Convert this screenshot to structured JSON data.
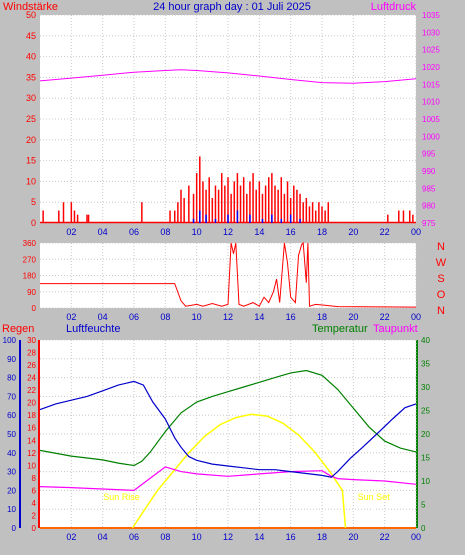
{
  "header": {
    "left_label": "Windstärke",
    "title": "24 hour graph day : 01 Juli 2025",
    "right_label": "Luftdruck"
  },
  "colors": {
    "background": "#c0c0c0",
    "plot_background": "#ffffff",
    "wind": "#ff0000",
    "gust": "#0000ff",
    "pressure": "#ff00ff",
    "direction": "#ff0000",
    "humidity": "#0000cc",
    "temperature": "#008000",
    "dewpoint": "#ff00ff",
    "solar": "#ffff00",
    "sunlabel": "#ffff00",
    "grid": "#c8c8c8"
  },
  "x_ticks": [
    "02",
    "04",
    "06",
    "08",
    "10",
    "12",
    "14",
    "16",
    "18",
    "20",
    "22",
    "00"
  ],
  "chart_data": [
    {
      "type": "bar",
      "title": "24 hour graph day : 01 Juli 2025",
      "left_axis": {
        "label": "Windstärke",
        "ticks": [
          0,
          5,
          10,
          15,
          20,
          25,
          30,
          35,
          40,
          45,
          50
        ],
        "range": [
          0,
          50
        ]
      },
      "right_axis": {
        "label": "Luftdruck",
        "ticks": [
          975,
          980,
          985,
          990,
          995,
          1000,
          1005,
          1010,
          1015,
          1020,
          1025,
          1030,
          1035
        ],
        "range": [
          975,
          1035
        ]
      },
      "x": {
        "ticks": [
          "02",
          "04",
          "06",
          "08",
          "10",
          "12",
          "14",
          "16",
          "18",
          "20",
          "22",
          "00"
        ],
        "range_hours": [
          0,
          24
        ]
      },
      "series": [
        {
          "kind": "line",
          "points": [
            [
              0,
              1016.0
            ],
            [
              2,
              1016.8
            ],
            [
              4,
              1017.6
            ],
            [
              6,
              1018.5
            ],
            [
              8,
              1019.0
            ],
            [
              9,
              1019.2
            ],
            [
              10,
              1019.0
            ],
            [
              12,
              1018.3
            ],
            [
              14,
              1017.4
            ],
            [
              16,
              1016.4
            ],
            [
              18,
              1015.5
            ],
            [
              20,
              1015.3
            ],
            [
              22,
              1015.8
            ],
            [
              24,
              1016.6
            ]
          ]
        },
        {
          "kind": "bars",
          "points": [
            [
              0.2,
              3
            ],
            [
              1.2,
              3
            ],
            [
              1.5,
              5
            ],
            [
              2.0,
              5
            ],
            [
              2.2,
              3
            ],
            [
              2.4,
              2
            ],
            [
              3.0,
              2
            ],
            [
              3.1,
              2
            ],
            [
              6.5,
              5
            ],
            [
              8.3,
              3
            ],
            [
              8.6,
              3
            ],
            [
              8.8,
              5
            ],
            [
              9.0,
              8
            ],
            [
              9.2,
              6
            ],
            [
              9.5,
              9
            ],
            [
              9.8,
              7
            ],
            [
              10.0,
              12
            ],
            [
              10.2,
              16
            ],
            [
              10.4,
              10
            ],
            [
              10.6,
              8
            ],
            [
              10.8,
              11
            ],
            [
              11.0,
              6
            ],
            [
              11.2,
              9
            ],
            [
              11.4,
              8
            ],
            [
              11.6,
              12
            ],
            [
              11.8,
              9
            ],
            [
              12.0,
              11
            ],
            [
              12.2,
              7
            ],
            [
              12.4,
              10
            ],
            [
              12.6,
              12
            ],
            [
              12.8,
              9
            ],
            [
              13.0,
              11
            ],
            [
              13.2,
              7
            ],
            [
              13.4,
              10
            ],
            [
              13.6,
              12
            ],
            [
              13.8,
              8
            ],
            [
              14.0,
              10
            ],
            [
              14.2,
              7
            ],
            [
              14.4,
              9
            ],
            [
              14.6,
              11
            ],
            [
              14.8,
              12
            ],
            [
              15.0,
              9
            ],
            [
              15.2,
              8
            ],
            [
              15.4,
              11
            ],
            [
              15.6,
              7
            ],
            [
              15.8,
              10
            ],
            [
              16.0,
              6
            ],
            [
              16.2,
              9
            ],
            [
              16.4,
              8
            ],
            [
              16.6,
              7
            ],
            [
              16.8,
              5
            ],
            [
              17.0,
              6
            ],
            [
              17.2,
              4
            ],
            [
              17.4,
              5
            ],
            [
              17.6,
              3
            ],
            [
              17.8,
              5
            ],
            [
              18.0,
              4
            ],
            [
              18.2,
              3
            ],
            [
              18.4,
              5
            ],
            [
              22.2,
              2
            ],
            [
              22.9,
              3
            ],
            [
              23.2,
              3
            ],
            [
              23.6,
              3
            ],
            [
              23.8,
              2
            ]
          ]
        },
        {
          "kind": "bars",
          "points": [
            [
              9.8,
              1
            ],
            [
              10.2,
              3
            ],
            [
              10.6,
              2
            ],
            [
              11.2,
              1
            ],
            [
              12.0,
              2
            ],
            [
              12.6,
              3
            ],
            [
              13.4,
              2
            ],
            [
              14.2,
              1
            ],
            [
              14.8,
              2
            ],
            [
              15.4,
              1
            ],
            [
              16.0,
              2
            ],
            [
              16.6,
              1
            ]
          ]
        }
      ]
    },
    {
      "type": "line",
      "title": "",
      "left_axis": {
        "ticks": [
          0,
          90,
          180,
          270,
          360
        ],
        "range": [
          0,
          360
        ]
      },
      "right_axis": {
        "labels": [
          "N",
          "W",
          "S",
          "O",
          "N"
        ]
      },
      "x": {
        "ticks": [
          "02",
          "04",
          "06",
          "08",
          "10",
          "12",
          "14",
          "16",
          "18",
          "20",
          "22",
          "00"
        ],
        "range_hours": [
          0,
          24
        ]
      },
      "series": [
        {
          "points": [
            [
              0,
              135
            ],
            [
              8.6,
              135
            ],
            [
              9.0,
              40
            ],
            [
              9.3,
              10
            ],
            [
              10.0,
              20
            ],
            [
              10.4,
              10
            ],
            [
              11.0,
              25
            ],
            [
              11.6,
              10
            ],
            [
              12.0,
              20
            ],
            [
              12.2,
              360
            ],
            [
              12.35,
              300
            ],
            [
              12.5,
              360
            ],
            [
              12.7,
              20
            ],
            [
              13.0,
              10
            ],
            [
              13.6,
              30
            ],
            [
              14.0,
              10
            ],
            [
              14.3,
              60
            ],
            [
              14.6,
              30
            ],
            [
              14.9,
              90
            ],
            [
              15.1,
              160
            ],
            [
              15.3,
              30
            ],
            [
              15.6,
              360
            ],
            [
              15.8,
              250
            ],
            [
              16.0,
              60
            ],
            [
              16.3,
              30
            ],
            [
              16.5,
              290
            ],
            [
              16.7,
              350
            ],
            [
              16.8,
              360
            ],
            [
              17.0,
              140
            ],
            [
              17.1,
              360
            ],
            [
              17.2,
              10
            ],
            [
              17.6,
              20
            ],
            [
              18.2,
              15
            ],
            [
              19.0,
              8
            ],
            [
              24,
              5
            ]
          ]
        }
      ]
    },
    {
      "type": "line",
      "title": "",
      "axes": {
        "regen": {
          "label": "Regen",
          "ticks": [
            0,
            2,
            4,
            6,
            8,
            10,
            12,
            14,
            16,
            18,
            20,
            22,
            24,
            26,
            28,
            30
          ]
        },
        "luftfeuchte": {
          "label": "Luftfeuchte",
          "ticks": [
            0,
            10,
            20,
            30,
            40,
            50,
            60,
            70,
            80,
            90,
            100
          ]
        },
        "temperatur": {
          "label": "Temperatur",
          "ticks": [
            0,
            5,
            10,
            15,
            20,
            25,
            30,
            35,
            40
          ]
        },
        "taupunkt": {
          "label": "Taupunkt"
        }
      },
      "x": {
        "ticks": [
          "02",
          "04",
          "06",
          "08",
          "10",
          "12",
          "14",
          "16",
          "18",
          "20",
          "22",
          "00"
        ],
        "range_hours": [
          0,
          24
        ]
      },
      "annotations": [
        {
          "text": "Sun Rise",
          "x_hours": 5.2
        },
        {
          "text": "Sun Set",
          "x_hours": 21.3
        }
      ],
      "series": [
        {
          "axis": "luftfeuchte",
          "points": [
            [
              0,
              63
            ],
            [
              1,
              66
            ],
            [
              2,
              68
            ],
            [
              3,
              70
            ],
            [
              4,
              73
            ],
            [
              5,
              76
            ],
            [
              6,
              78
            ],
            [
              6.6,
              76
            ],
            [
              7.2,
              67
            ],
            [
              8.0,
              58
            ],
            [
              8.6,
              48
            ],
            [
              9.0,
              43
            ],
            [
              9.5,
              38
            ],
            [
              10.0,
              36
            ],
            [
              11.0,
              34
            ],
            [
              12.0,
              33
            ],
            [
              13.0,
              32
            ],
            [
              14.0,
              31
            ],
            [
              15.0,
              31
            ],
            [
              16.0,
              30
            ],
            [
              17.0,
              29
            ],
            [
              18.0,
              28
            ],
            [
              18.6,
              27
            ],
            [
              19.0,
              30
            ],
            [
              19.8,
              37
            ],
            [
              20.6,
              43
            ],
            [
              21.5,
              50
            ],
            [
              22.5,
              58
            ],
            [
              23.3,
              64
            ],
            [
              24,
              66
            ]
          ]
        },
        {
          "axis": "temperatur",
          "points": [
            [
              0,
              16.5
            ],
            [
              2,
              15.3
            ],
            [
              4,
              14.5
            ],
            [
              5,
              13.8
            ],
            [
              6,
              13.3
            ],
            [
              6.5,
              14.2
            ],
            [
              7.0,
              16.0
            ],
            [
              8.0,
              20.5
            ],
            [
              9.0,
              24.5
            ],
            [
              10.0,
              26.8
            ],
            [
              11.0,
              28.0
            ],
            [
              12.0,
              29.0
            ],
            [
              13.0,
              30.0
            ],
            [
              14.0,
              31.0
            ],
            [
              15.0,
              32.0
            ],
            [
              16.0,
              33.0
            ],
            [
              17.0,
              33.5
            ],
            [
              18.0,
              32.5
            ],
            [
              19.0,
              29.5
            ],
            [
              20.0,
              25.5
            ],
            [
              21.0,
              21.5
            ],
            [
              22.0,
              18.5
            ],
            [
              23.0,
              17.0
            ],
            [
              24,
              16.2
            ]
          ]
        },
        {
          "axis": "temperatur",
          "points": [
            [
              0,
              8.8
            ],
            [
              2,
              8.6
            ],
            [
              4,
              8.3
            ],
            [
              6,
              8.0
            ],
            [
              7.0,
              10.5
            ],
            [
              8.0,
              13.0
            ],
            [
              9.0,
              12.0
            ],
            [
              10.0,
              11.5
            ],
            [
              12.0,
              11.0
            ],
            [
              14.0,
              11.5
            ],
            [
              16.0,
              12.0
            ],
            [
              18.0,
              12.2
            ],
            [
              18.6,
              11.0
            ],
            [
              19.0,
              10.5
            ],
            [
              20.0,
              10.3
            ],
            [
              22.0,
              10.0
            ],
            [
              24,
              9.3
            ]
          ]
        },
        {
          "axis": "temperatur",
          "points": [
            [
              5.9,
              0
            ],
            [
              6.5,
              3
            ],
            [
              7.5,
              8
            ],
            [
              8.5,
              12
            ],
            [
              9.5,
              16
            ],
            [
              10.5,
              19.5
            ],
            [
              11.5,
              22
            ],
            [
              12.5,
              23.5
            ],
            [
              13.5,
              24.2
            ],
            [
              14.5,
              23.8
            ],
            [
              15.5,
              22.3
            ],
            [
              16.5,
              19.8
            ],
            [
              17.5,
              16.3
            ],
            [
              18.5,
              12
            ],
            [
              19.3,
              8
            ],
            [
              19.5,
              0
            ]
          ]
        },
        {
          "axis": "regen",
          "points": [
            [
              0,
              0
            ],
            [
              24,
              0
            ]
          ]
        }
      ]
    }
  ]
}
